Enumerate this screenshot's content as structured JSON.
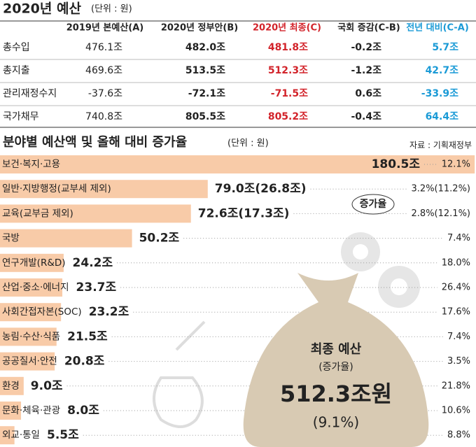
{
  "header": {
    "title": "2020년 예산",
    "unit": "(단위 : 원)"
  },
  "table": {
    "columns": [
      "2019년 본예산(A)",
      "2020년 정부안(B)",
      "2020년 최종(C)",
      "국회 증감(C-B)",
      "전년 대비(C-A)"
    ],
    "rows": [
      [
        "총수입",
        "476.1조",
        "482.0조",
        "481.8조",
        "-0.2조",
        "5.7조"
      ],
      [
        "총지출",
        "469.6조",
        "513.5조",
        "512.3조",
        "-1.2조",
        "42.7조"
      ],
      [
        "관리재정수지",
        "-37.6조",
        "-72.1조",
        "-71.5조",
        "0.6조",
        "-33.9조"
      ],
      [
        "국가채무",
        "740.8조",
        "805.5조",
        "805.2조",
        "-0.4조",
        "64.4조"
      ]
    ]
  },
  "chart_data": {
    "type": "bar",
    "orientation": "horizontal",
    "title": "분야별 예산액 및 올해 대비 증가율",
    "unit": "(단위 : 원)",
    "source": "자료 : 기획재정부",
    "categories": [
      "보건·복지·고용",
      "일반·지방행정(교부세 제외)",
      "교육(교부금 제외)",
      "국방",
      "연구개발(R&D)",
      "산업·중소·에너지",
      "사회간접자본(SOC)",
      "농림·수산·식품",
      "공공질서·안전",
      "환경",
      "문화·체육·관광",
      "외교·통일"
    ],
    "values": [
      180.5,
      79.0,
      72.6,
      50.2,
      24.2,
      23.7,
      23.2,
      21.5,
      20.8,
      9.0,
      8.0,
      5.5
    ],
    "value_labels": [
      "180.5조",
      "79.0조(26.8조)",
      "72.6조(17.3조)",
      "50.2조",
      "24.2조",
      "23.7조",
      "23.2조",
      "21.5조",
      "20.8조",
      "9.0조",
      "8.0조",
      "5.5조"
    ],
    "color": "#f8cba8",
    "xlim": [
      0,
      181
    ],
    "growth": {
      "label": "증가율",
      "values": [
        12.1,
        3.2,
        2.8,
        7.4,
        18.0,
        26.4,
        17.6,
        7.4,
        3.5,
        21.8,
        10.6,
        8.8
      ],
      "value_labels": [
        "12.1%",
        "3.2%(11.2%)",
        "2.8%(12.1%)",
        "7.4%",
        "18.0%",
        "26.4%",
        "17.6%",
        "7.4%",
        "3.5%",
        "21.8%",
        "10.6%",
        "8.8%"
      ]
    },
    "callout": {
      "title": "최종 예산",
      "subtitle": "(증가율)",
      "value": "512.3조원",
      "rate": "(9.1%)"
    }
  }
}
